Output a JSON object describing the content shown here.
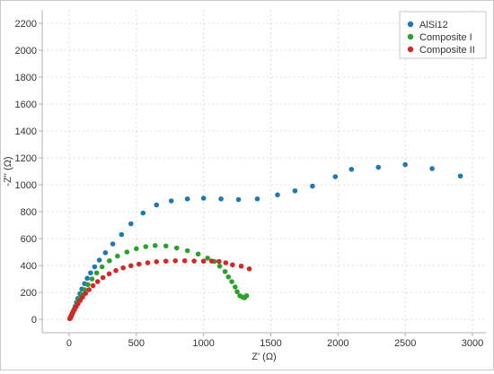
{
  "chart_data": {
    "type": "scatter",
    "title": "",
    "xlabel": "Z' (Ω)",
    "ylabel": "-Z'' (Ω)",
    "xlim": [
      -200,
      3100
    ],
    "ylim": [
      -100,
      2300
    ],
    "x_ticks": [
      0,
      500,
      1000,
      1500,
      2000,
      2500,
      3000
    ],
    "y_ticks": [
      0,
      200,
      400,
      600,
      800,
      1000,
      1200,
      1400,
      1600,
      1800,
      2000,
      2200
    ],
    "grid": true,
    "legend_position": "top-right",
    "series": [
      {
        "name": "AlSi12",
        "color": "#1f77b4",
        "points": [
          [
            10,
            8
          ],
          [
            18,
            25
          ],
          [
            25,
            45
          ],
          [
            35,
            70
          ],
          [
            45,
            95
          ],
          [
            55,
            125
          ],
          [
            65,
            155
          ],
          [
            80,
            190
          ],
          [
            95,
            225
          ],
          [
            115,
            265
          ],
          [
            135,
            305
          ],
          [
            160,
            345
          ],
          [
            190,
            390
          ],
          [
            225,
            440
          ],
          [
            270,
            495
          ],
          [
            325,
            560
          ],
          [
            390,
            630
          ],
          [
            460,
            710
          ],
          [
            550,
            790
          ],
          [
            650,
            850
          ],
          [
            760,
            880
          ],
          [
            880,
            895
          ],
          [
            1000,
            900
          ],
          [
            1130,
            895
          ],
          [
            1260,
            890
          ],
          [
            1400,
            895
          ],
          [
            1550,
            925
          ],
          [
            1680,
            955
          ],
          [
            1810,
            990
          ],
          [
            1980,
            1060
          ],
          [
            2100,
            1115
          ],
          [
            2300,
            1130
          ],
          [
            2500,
            1150
          ],
          [
            2700,
            1120
          ],
          [
            2910,
            1065
          ]
        ]
      },
      {
        "name": "Composite I",
        "color": "#2ca02c",
        "points": [
          [
            5,
            5
          ],
          [
            12,
            20
          ],
          [
            20,
            38
          ],
          [
            28,
            55
          ],
          [
            38,
            75
          ],
          [
            50,
            100
          ],
          [
            62,
            125
          ],
          [
            78,
            155
          ],
          [
            95,
            185
          ],
          [
            115,
            220
          ],
          [
            140,
            258
          ],
          [
            170,
            300
          ],
          [
            205,
            345
          ],
          [
            245,
            390
          ],
          [
            300,
            435
          ],
          [
            360,
            470
          ],
          [
            430,
            500
          ],
          [
            500,
            525
          ],
          [
            570,
            540
          ],
          [
            640,
            548
          ],
          [
            720,
            545
          ],
          [
            800,
            530
          ],
          [
            880,
            510
          ],
          [
            960,
            485
          ],
          [
            1030,
            455
          ],
          [
            1080,
            430
          ],
          [
            1120,
            395
          ],
          [
            1160,
            355
          ],
          [
            1185,
            315
          ],
          [
            1210,
            280
          ],
          [
            1235,
            240
          ],
          [
            1250,
            205
          ],
          [
            1270,
            175
          ],
          [
            1290,
            165
          ],
          [
            1305,
            160
          ],
          [
            1320,
            175
          ]
        ]
      },
      {
        "name": "Composite II",
        "color": "#d62728",
        "points": [
          [
            5,
            5
          ],
          [
            10,
            15
          ],
          [
            16,
            28
          ],
          [
            22,
            40
          ],
          [
            30,
            55
          ],
          [
            40,
            72
          ],
          [
            52,
            92
          ],
          [
            66,
            115
          ],
          [
            82,
            140
          ],
          [
            100,
            165
          ],
          [
            122,
            192
          ],
          [
            148,
            220
          ],
          [
            178,
            250
          ],
          [
            212,
            280
          ],
          [
            252,
            310
          ],
          [
            298,
            338
          ],
          [
            348,
            362
          ],
          [
            402,
            382
          ],
          [
            460,
            398
          ],
          [
            520,
            410
          ],
          [
            585,
            420
          ],
          [
            650,
            428
          ],
          [
            720,
            432
          ],
          [
            790,
            435
          ],
          [
            860,
            435
          ],
          [
            930,
            433
          ],
          [
            1000,
            432
          ],
          [
            1060,
            433
          ],
          [
            1115,
            430
          ],
          [
            1165,
            420
          ],
          [
            1215,
            405
          ],
          [
            1280,
            395
          ],
          [
            1340,
            375
          ]
        ]
      }
    ]
  }
}
